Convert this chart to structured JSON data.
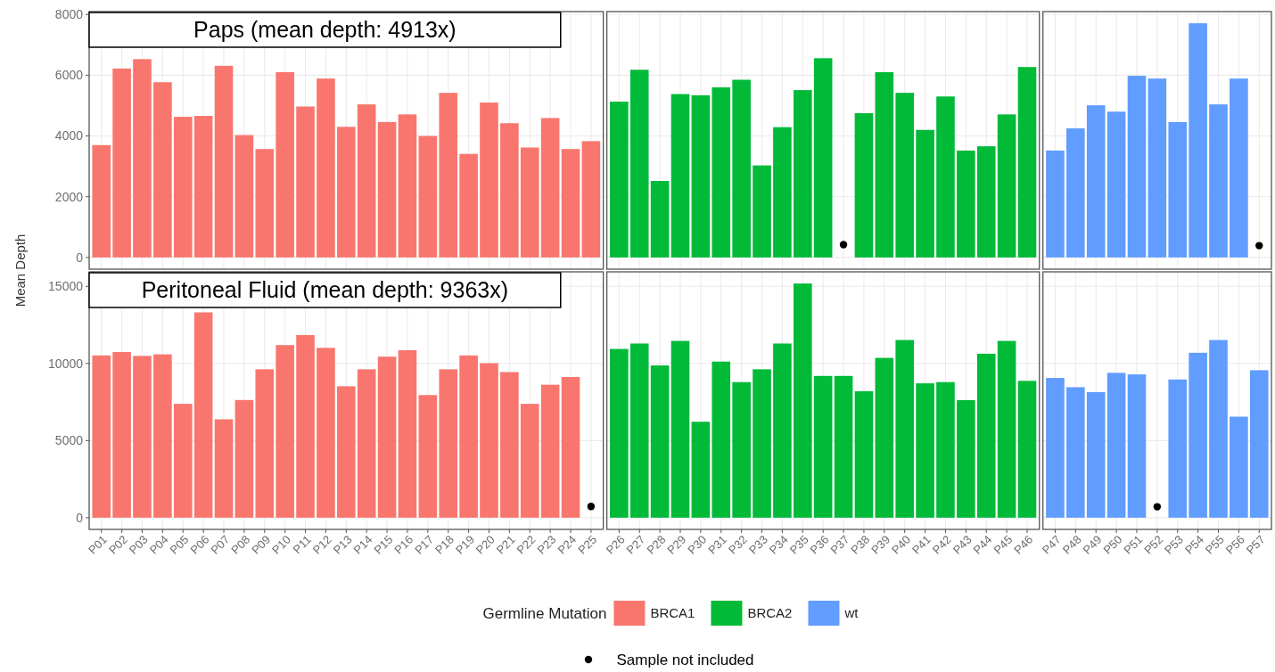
{
  "chart_data": [
    {
      "type": "bar",
      "title": "Paps (mean depth: 4913x)",
      "ylabel": "Mean Depth",
      "categories": [
        "P01",
        "P02",
        "P03",
        "P04",
        "P05",
        "P06",
        "P07",
        "P08",
        "P09",
        "P10",
        "P11",
        "P12",
        "P13",
        "P14",
        "P15",
        "P16",
        "P17",
        "P18",
        "P19",
        "P20",
        "P21",
        "P22",
        "P23",
        "P24",
        "P25"
      ],
      "values": [
        3700,
        6220,
        6530,
        5770,
        4630,
        4660,
        6310,
        4030,
        3570,
        6100,
        4970,
        5890,
        4300,
        5040,
        4460,
        4710,
        4000,
        5420,
        3410,
        5100,
        4420,
        3620,
        4590,
        3570,
        3830
      ],
      "color": "#f8766d",
      "ylim": [
        -385,
        8095
      ],
      "yticks": [
        0,
        2000,
        4000,
        6000,
        8000
      ],
      "grid": true,
      "tick_labels": "y"
    },
    {
      "type": "bar",
      "categories": [
        "P26",
        "P27",
        "P28",
        "P29",
        "P30",
        "P31",
        "P32",
        "P33",
        "P34",
        "P35",
        "P36",
        "P37",
        "P38",
        "P39",
        "P40",
        "P41",
        "P42",
        "P43",
        "P44",
        "P45",
        "P46"
      ],
      "series": [
        {
          "color": "#00ba38",
          "values": [
            5130,
            6180,
            2520,
            5380,
            5340,
            5600,
            5850,
            3030,
            4290,
            5510,
            6560,
            null,
            4750,
            6100,
            5420,
            4200,
            5300,
            3520,
            3660,
            4710,
            6270
          ]
        },
        {
          "type": "scatter",
          "color": "#000000",
          "x": [
            "P37"
          ],
          "values": [
            420
          ]
        }
      ],
      "ylim": [
        -385,
        8095
      ],
      "yticks": [
        0,
        2000,
        4000,
        6000,
        8000
      ],
      "grid": true,
      "tick_labels": false
    },
    {
      "type": "bar",
      "categories": [
        "P47",
        "P48",
        "P49",
        "P50",
        "P51",
        "P52",
        "P53",
        "P54",
        "P55",
        "P56",
        "P57"
      ],
      "series": [
        {
          "color": "#619cff",
          "values": [
            3520,
            4250,
            5010,
            4800,
            5980,
            5890,
            4460,
            7710,
            5040,
            5890,
            null
          ]
        },
        {
          "type": "scatter",
          "color": "#000000",
          "x": [
            "P57"
          ],
          "values": [
            390
          ]
        }
      ],
      "ylim": [
        -385,
        8095
      ],
      "yticks": [
        0,
        2000,
        4000,
        6000,
        8000
      ],
      "grid": true,
      "tick_labels": false
    },
    {
      "type": "bar",
      "title": "Peritoneal Fluid (mean depth: 9363x)",
      "legend_title": "Germline Mutation",
      "categories": [
        "P01",
        "P02",
        "P03",
        "P04",
        "P05",
        "P06",
        "P07",
        "P08",
        "P09",
        "P10",
        "P11",
        "P12",
        "P13",
        "P14",
        "P15",
        "P16",
        "P17",
        "P18",
        "P19",
        "P20",
        "P21",
        "P22",
        "P23",
        "P24",
        "P25"
      ],
      "series": [
        {
          "name": "BRCA1",
          "color": "#f8766d",
          "values": [
            10520,
            10740,
            10490,
            10590,
            7380,
            13310,
            6380,
            7630,
            9620,
            11190,
            11840,
            11010,
            8520,
            9620,
            10440,
            10860,
            7950,
            9620,
            10520,
            10020,
            9440,
            7380,
            8620,
            9120,
            null
          ]
        },
        {
          "type": "scatter",
          "name": "Sample not included",
          "color": "#000000",
          "x": [
            "P25"
          ],
          "values": [
            730
          ]
        }
      ],
      "ylim": [
        -759,
        15939
      ],
      "yticks": [
        0,
        5000,
        10000,
        15000
      ],
      "grid": true,
      "legend": "bottom"
    },
    {
      "type": "bar",
      "categories": [
        "P26",
        "P27",
        "P28",
        "P29",
        "P30",
        "P31",
        "P32",
        "P33",
        "P34",
        "P35",
        "P36",
        "P37",
        "P38",
        "P39",
        "P40",
        "P41",
        "P42",
        "P43",
        "P44",
        "P45",
        "P46"
      ],
      "series": [
        {
          "name": "BRCA2",
          "color": "#00ba38",
          "values": [
            10940,
            11290,
            9870,
            11460,
            6220,
            10120,
            8790,
            9620,
            11290,
            15180,
            9190,
            9190,
            8200,
            10360,
            11520,
            8710,
            8790,
            7620,
            10630,
            11460,
            8870
          ]
        }
      ],
      "ylim": [
        -759,
        15939
      ],
      "yticks": [
        0,
        5000,
        10000,
        15000
      ],
      "grid": true,
      "tick_labels": "x",
      "legend": "bottom"
    },
    {
      "type": "bar",
      "categories": [
        "P47",
        "P48",
        "P49",
        "P50",
        "P51",
        "P52",
        "P53",
        "P54",
        "P55",
        "P56",
        "P57"
      ],
      "series": [
        {
          "name": "wt",
          "color": "#619cff",
          "values": [
            9060,
            8460,
            8140,
            9390,
            9290,
            null,
            8960,
            10690,
            11520,
            6550,
            9560
          ]
        },
        {
          "type": "scatter",
          "color": "#000000",
          "x": [
            "P52"
          ],
          "values": [
            710
          ]
        }
      ],
      "ylim": [
        -759,
        15939
      ],
      "yticks": [
        0,
        5000,
        10000,
        15000
      ],
      "grid": true,
      "tick_labels": "x",
      "legend": "bottom"
    }
  ]
}
